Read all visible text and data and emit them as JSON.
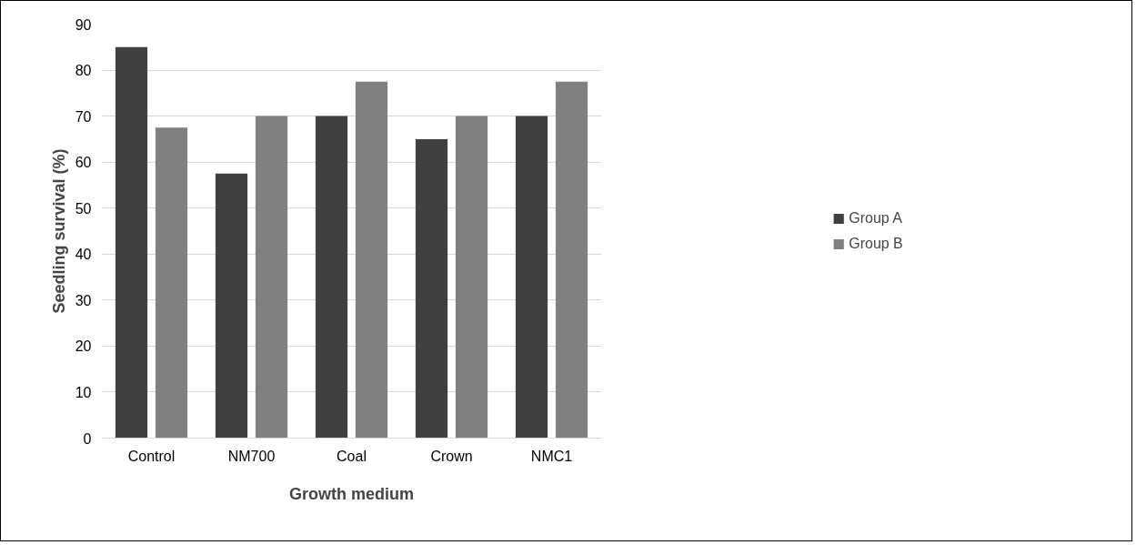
{
  "chart_data": {
    "type": "bar",
    "xlabel": "Growth medium",
    "ylabel": "Seedling survival (%)",
    "categories": [
      "Control",
      "NM700",
      "Coal",
      "Crown",
      "NMC1"
    ],
    "series": [
      {
        "name": "Group A",
        "color": "#404040",
        "values": [
          85,
          57.5,
          70,
          65,
          70
        ]
      },
      {
        "name": "Group B",
        "color": "#808080",
        "values": [
          67.5,
          70,
          77.5,
          70,
          77.5
        ]
      }
    ],
    "ylim": [
      0,
      90
    ],
    "yticks": [
      0,
      10,
      20,
      30,
      40,
      50,
      60,
      70,
      80,
      90
    ],
    "grid": "y",
    "legend": "right"
  }
}
